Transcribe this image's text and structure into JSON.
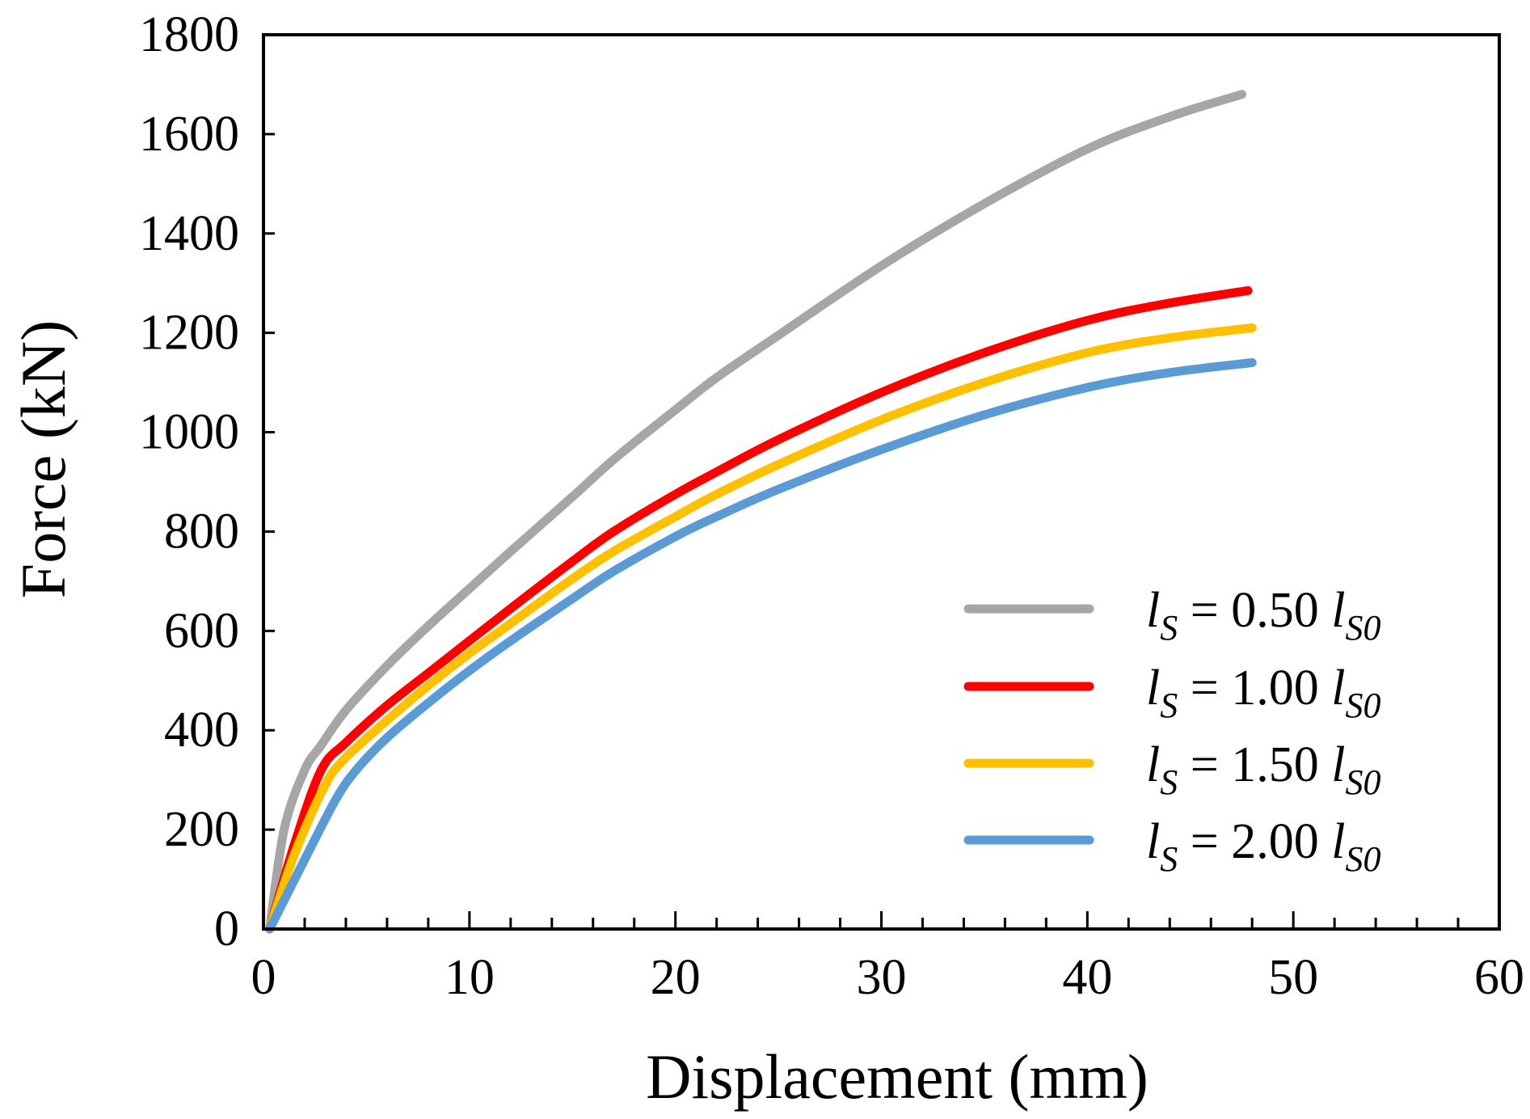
{
  "chart_data": {
    "type": "line",
    "title": "",
    "xlabel": "Displacement (mm)",
    "ylabel": "Force (kN)",
    "xlim": [
      0,
      60
    ],
    "ylim": [
      0,
      1800
    ],
    "xticks": [
      "0",
      "10",
      "20",
      "30",
      "40",
      "50",
      "60"
    ],
    "yticks": [
      "0",
      "200",
      "400",
      "600",
      "800",
      "1000",
      "1200",
      "1400",
      "1600",
      "1800"
    ],
    "grid": false,
    "legend_position": "bottom-right",
    "series": [
      {
        "name": "l_S = 0.50 l_S0",
        "legend": {
          "l": "l",
          "sub": "S",
          "eq": " = 0.50 ",
          "l2": "l",
          "sub2": "S0"
        },
        "color": "#a6a6a6",
        "x": [
          0.3,
          1.0,
          2.0,
          2.8,
          4.0,
          6.0,
          8.0,
          10.0,
          12.0,
          15.0,
          17.0,
          20.0,
          22.0,
          25.0,
          30.0,
          35.0,
          40.0,
          44.0,
          47.5
        ],
        "y": [
          0,
          200,
          320,
          370,
          440,
          530,
          610,
          685,
          760,
          870,
          945,
          1045,
          1110,
          1195,
          1335,
          1460,
          1570,
          1635,
          1680
        ]
      },
      {
        "name": "l_S = 1.00 l_S0",
        "legend": {
          "l": "l",
          "sub": "S",
          "eq": " = 1.00 ",
          "l2": "l",
          "sub2": "S0"
        },
        "color": "#ff0000",
        "x": [
          0.3,
          1.5,
          2.8,
          4.0,
          6.0,
          8.0,
          10.0,
          12.0,
          15.0,
          17.0,
          20.0,
          22.0,
          25.0,
          30.0,
          35.0,
          40.0,
          44.0,
          47.8
        ],
        "y": [
          0,
          170,
          320,
          375,
          450,
          515,
          580,
          645,
          740,
          800,
          875,
          920,
          985,
          1080,
          1160,
          1225,
          1260,
          1285
        ]
      },
      {
        "name": "l_S = 1.50 l_S0",
        "legend": {
          "l": "l",
          "sub": "S",
          "eq": " = 1.50 ",
          "l2": "l",
          "sub2": "S0"
        },
        "color": "#ffc000",
        "x": [
          0.3,
          1.5,
          3.0,
          4.0,
          6.0,
          8.0,
          10.0,
          12.0,
          15.0,
          17.0,
          20.0,
          22.0,
          25.0,
          30.0,
          35.0,
          40.0,
          44.0,
          48.0
        ],
        "y": [
          0,
          150,
          290,
          345,
          420,
          490,
          555,
          615,
          705,
          760,
          830,
          875,
          935,
          1025,
          1100,
          1160,
          1190,
          1210
        ]
      },
      {
        "name": "l_S = 2.00 l_S0",
        "legend": {
          "l": "l",
          "sub": "S",
          "eq": " = 2.00 ",
          "l2": "l",
          "sub2": "S0"
        },
        "color": "#5b9bd5",
        "x": [
          0.3,
          2.0,
          3.5,
          4.5,
          6.0,
          8.0,
          10.0,
          12.0,
          15.0,
          17.0,
          20.0,
          22.0,
          25.0,
          30.0,
          35.0,
          40.0,
          44.0,
          48.0
        ],
        "y": [
          0,
          140,
          260,
          320,
          385,
          455,
          520,
          580,
          665,
          720,
          790,
          830,
          885,
          965,
          1035,
          1090,
          1120,
          1140
        ]
      }
    ]
  }
}
